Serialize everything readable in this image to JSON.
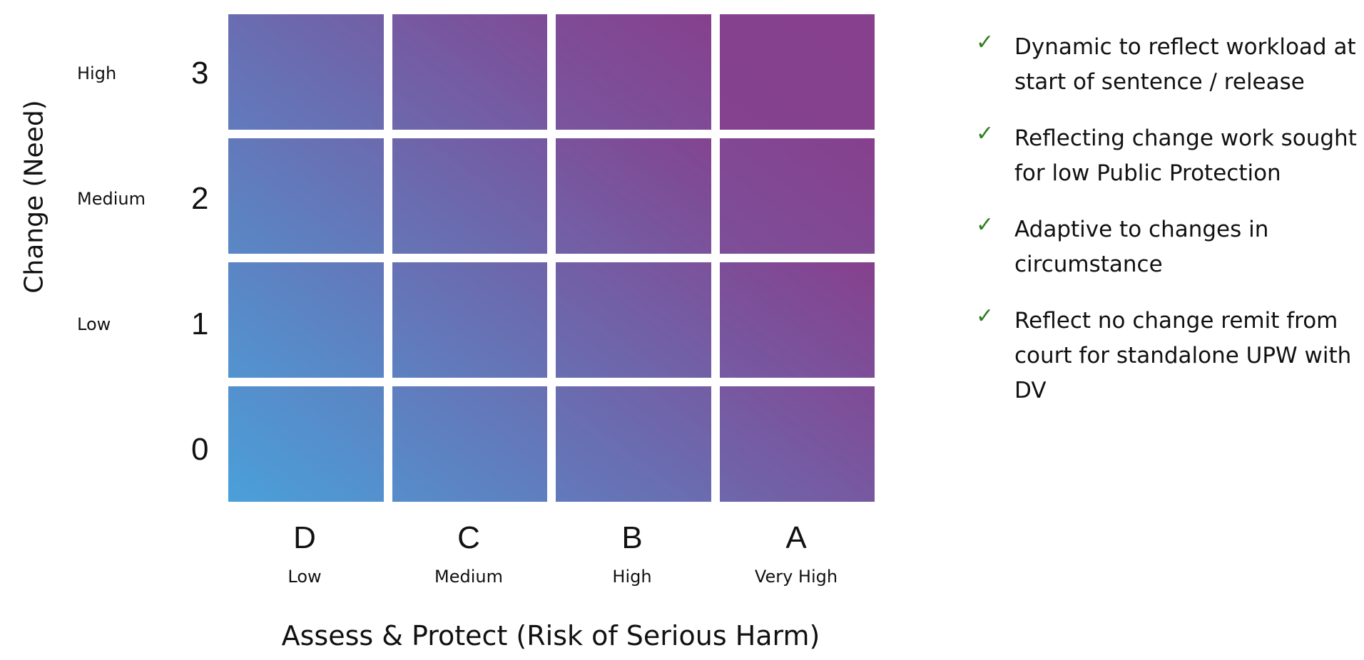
{
  "y_axis": {
    "title": "Change (Need)",
    "levels": [
      {
        "name": "High",
        "number": "3"
      },
      {
        "name": "Medium",
        "number": "2"
      },
      {
        "name": "Low",
        "number": "1"
      },
      {
        "name": "",
        "number": "0"
      }
    ]
  },
  "x_axis": {
    "title": "Assess & Protect (Risk of Serious Harm)",
    "categories": [
      {
        "letter": "D",
        "level": "Low"
      },
      {
        "letter": "C",
        "level": "Medium"
      },
      {
        "letter": "B",
        "level": "High"
      },
      {
        "letter": "A",
        "level": "Very High"
      }
    ]
  },
  "colors": {
    "low_corner": "#4aa0da",
    "high_corner": "#86408d",
    "check": "#2f7d1e"
  },
  "bullets": [
    {
      "icon": "check-icon",
      "text": "Dynamic to reflect workload at start of sentence / release"
    },
    {
      "icon": "check-icon",
      "text": "Reflecting change work sought for low Public Protection"
    },
    {
      "icon": "check-icon",
      "text": "Adaptive to changes in circumstance"
    },
    {
      "icon": "check-icon",
      "text": "Reflect no change remit from court for standalone UPW with DV"
    }
  ]
}
